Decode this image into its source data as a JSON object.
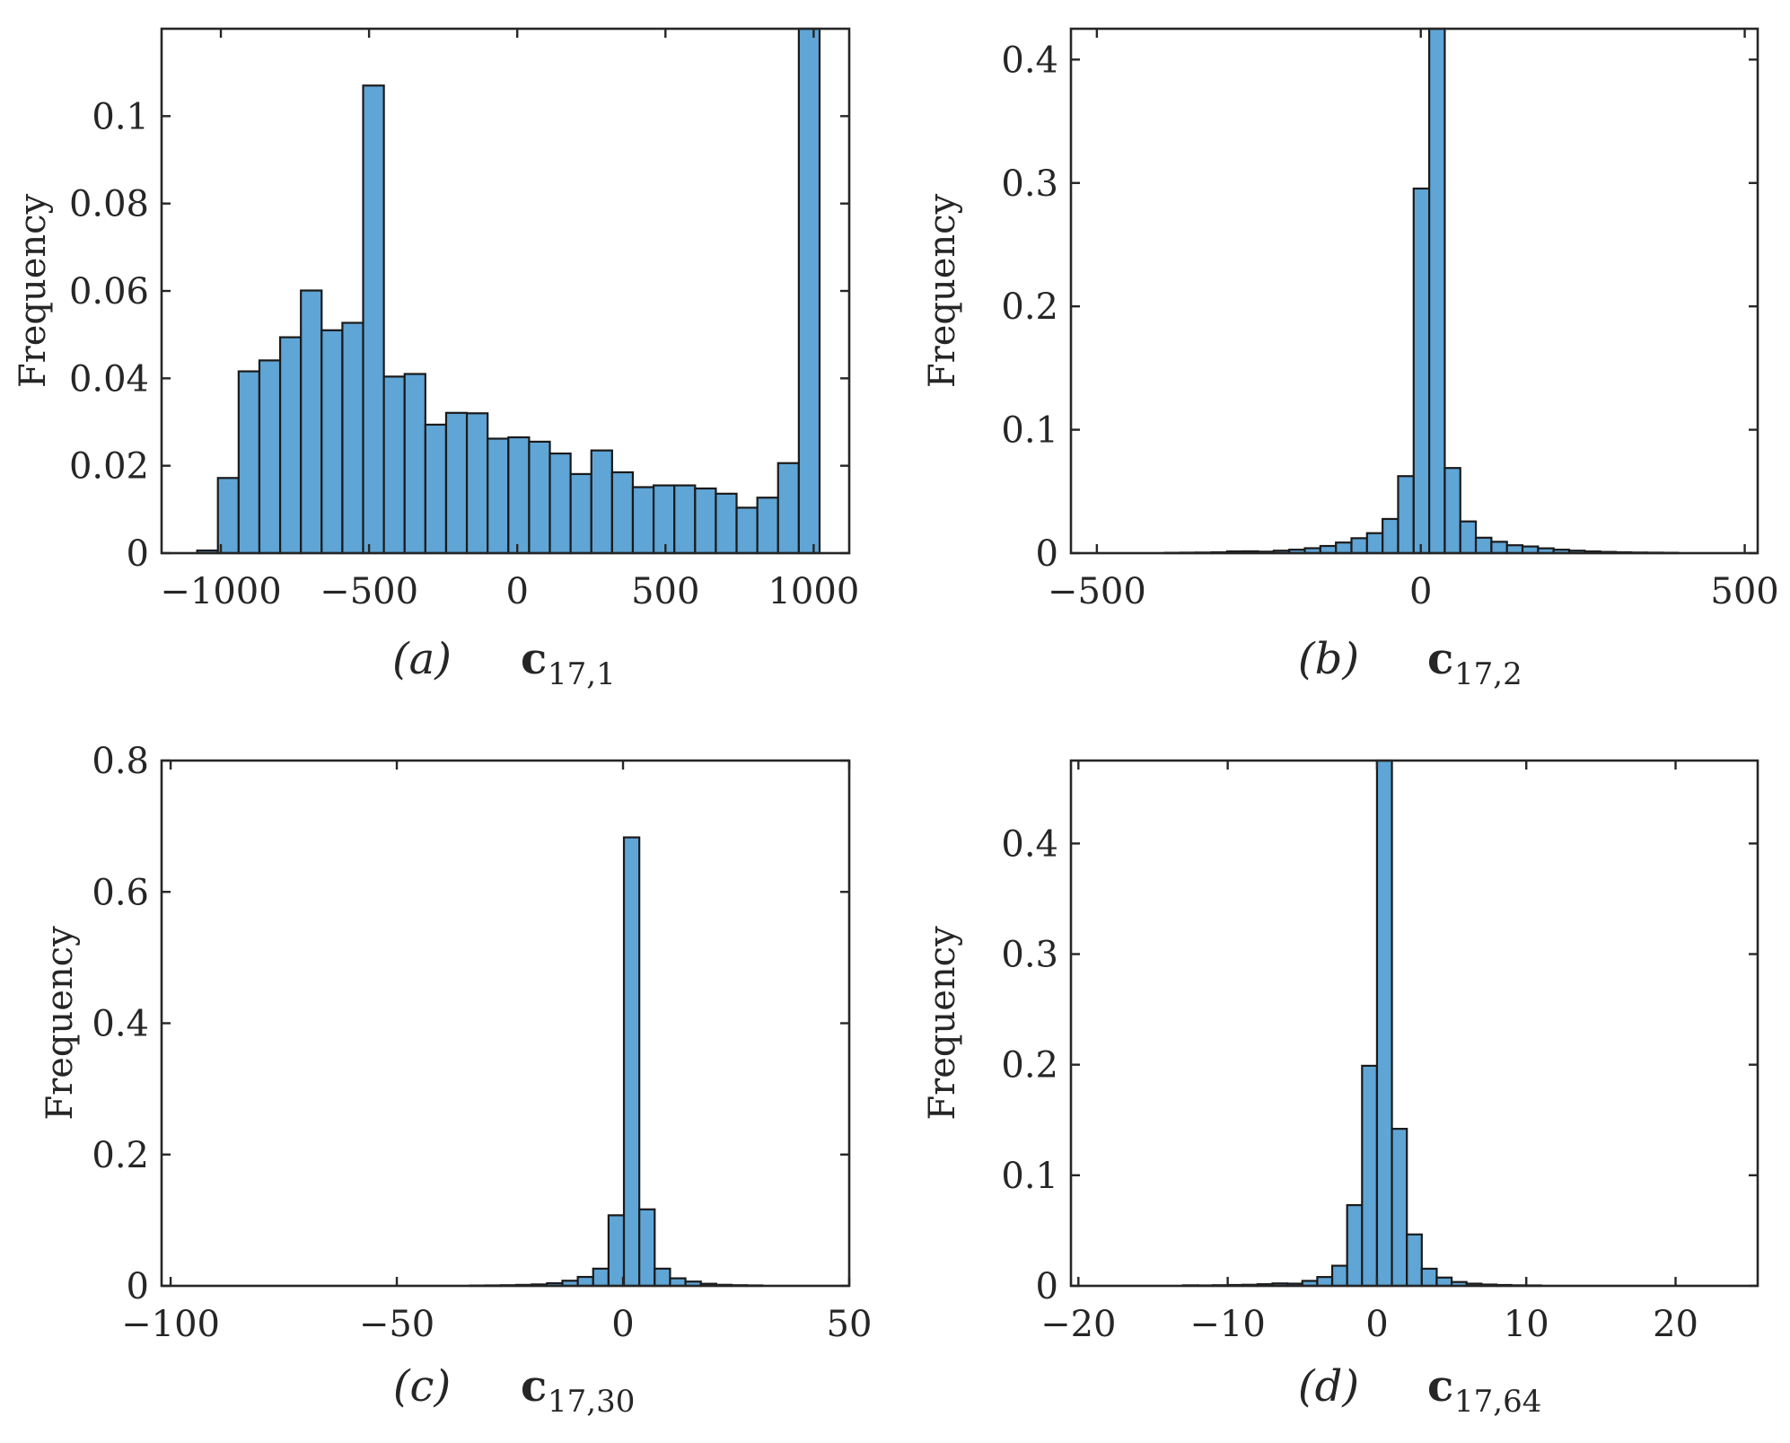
{
  "chart_data": [
    {
      "type": "bar",
      "panel": "(a)",
      "variable": "c",
      "subscript": "17,1",
      "ylabel": "Frequency",
      "xlim": [
        -1200,
        1120
      ],
      "ylim": [
        0,
        0.12
      ],
      "xticks": [
        -1000,
        -500,
        0,
        500,
        1000
      ],
      "xtick_labels": [
        "−1000",
        "−500",
        "0",
        "500",
        "1000"
      ],
      "yticks": [
        0,
        0.02,
        0.04,
        0.06,
        0.08,
        0.1
      ],
      "ytick_labels": [
        "0",
        "0.02",
        "0.04",
        "0.06",
        "0.08",
        "0.1"
      ],
      "bin_edges": [
        -1080,
        -1010,
        -940,
        -870,
        -800,
        -730,
        -660,
        -590,
        -520,
        -450,
        -380,
        -310,
        -240,
        -170,
        -100,
        -30,
        40,
        110,
        180,
        250,
        320,
        390,
        460,
        530,
        600,
        670,
        740,
        810,
        880,
        950,
        1020
      ],
      "values": [
        0.0006,
        0.0172,
        0.0416,
        0.0441,
        0.0494,
        0.0601,
        0.051,
        0.0527,
        0.107,
        0.0404,
        0.041,
        0.0294,
        0.0321,
        0.032,
        0.0262,
        0.0265,
        0.0255,
        0.0228,
        0.0181,
        0.0235,
        0.0185,
        0.0151,
        0.0155,
        0.0155,
        0.0148,
        0.0136,
        0.0104,
        0.0127,
        0.0206,
        0.12
      ]
    },
    {
      "type": "bar",
      "panel": "(b)",
      "variable": "c",
      "subscript": "17,2",
      "ylabel": "Frequency",
      "xlim": [
        -540,
        520
      ],
      "ylim": [
        0,
        0.425
      ],
      "xticks": [
        -500,
        0,
        500
      ],
      "xtick_labels": [
        "−500",
        "0",
        "500"
      ],
      "yticks": [
        0,
        0.1,
        0.2,
        0.3,
        0.4
      ],
      "ytick_labels": [
        "0",
        "0.1",
        "0.2",
        "0.3",
        "0.4"
      ],
      "bin_edges": [
        -395,
        -371,
        -347,
        -323,
        -299,
        -275,
        -251,
        -227,
        -203,
        -179,
        -155,
        -131,
        -107,
        -83,
        -59,
        -35,
        -11,
        13,
        37,
        61,
        85,
        109,
        133,
        157,
        181,
        205,
        229,
        253,
        277,
        301,
        325,
        349,
        373,
        397
      ],
      "values": [
        0.0003,
        0.0004,
        0.0005,
        0.0007,
        0.0014,
        0.0015,
        0.0012,
        0.002,
        0.0028,
        0.004,
        0.0058,
        0.0086,
        0.0121,
        0.0162,
        0.0277,
        0.0624,
        0.2955,
        0.425,
        0.069,
        0.0257,
        0.0125,
        0.0092,
        0.0064,
        0.0054,
        0.0039,
        0.0028,
        0.002,
        0.0014,
        0.001,
        0.0007,
        0.0005,
        0.0004,
        0.0003
      ]
    },
    {
      "type": "bar",
      "panel": "(c)",
      "variable": "c",
      "subscript": "17,30",
      "ylabel": "Frequency",
      "xlim": [
        -102,
        50
      ],
      "ylim": [
        0,
        0.8
      ],
      "xticks": [
        -100,
        -50,
        0,
        50
      ],
      "xtick_labels": [
        "−100",
        "−50",
        "0",
        "50"
      ],
      "yticks": [
        0,
        0.2,
        0.4,
        0.6,
        0.8
      ],
      "ytick_labels": [
        "0",
        "0.2",
        "0.4",
        "0.6",
        "0.8"
      ],
      "bin_edges": [
        -33.8,
        -30.4,
        -27.0,
        -23.6,
        -20.2,
        -16.8,
        -13.4,
        -10.0,
        -6.6,
        -3.2,
        0.2,
        3.6,
        7.0,
        10.4,
        13.8,
        17.2,
        20.6,
        24.0,
        27.4,
        30.8
      ],
      "values": [
        0.0005,
        0.0007,
        0.001,
        0.0015,
        0.0022,
        0.004,
        0.0078,
        0.0136,
        0.0262,
        0.1075,
        0.683,
        0.1165,
        0.0262,
        0.0115,
        0.0065,
        0.0032,
        0.0016,
        0.001,
        0.0007
      ]
    },
    {
      "type": "bar",
      "panel": "(d)",
      "variable": "c",
      "subscript": "17,64",
      "ylabel": "Frequency",
      "xlim": [
        -20.5,
        25.5
      ],
      "ylim": [
        0,
        0.475
      ],
      "xticks": [
        -20,
        -10,
        0,
        10,
        20
      ],
      "xtick_labels": [
        "−20",
        "−10",
        "0",
        "10",
        "20"
      ],
      "yticks": [
        0,
        0.1,
        0.2,
        0.3,
        0.4
      ],
      "ytick_labels": [
        "0",
        "0.1",
        "0.2",
        "0.3",
        "0.4"
      ],
      "bin_edges": [
        -13.0,
        -12.0,
        -11.0,
        -10.0,
        -9.0,
        -8.0,
        -7.0,
        -6.0,
        -5.0,
        -4.0,
        -3.0,
        -2.0,
        -1.0,
        0.0,
        1.0,
        2.0,
        3.0,
        4.0,
        5.0,
        6.0,
        7.0,
        8.0,
        9.0,
        10.0,
        11.0
      ],
      "values": [
        0.0005,
        0.0004,
        0.0006,
        0.0008,
        0.001,
        0.0015,
        0.0022,
        0.002,
        0.0045,
        0.008,
        0.0182,
        0.073,
        0.199,
        0.475,
        0.142,
        0.0465,
        0.0155,
        0.0075,
        0.0035,
        0.002,
        0.0012,
        0.0008,
        0.0005,
        0.0004
      ]
    }
  ]
}
